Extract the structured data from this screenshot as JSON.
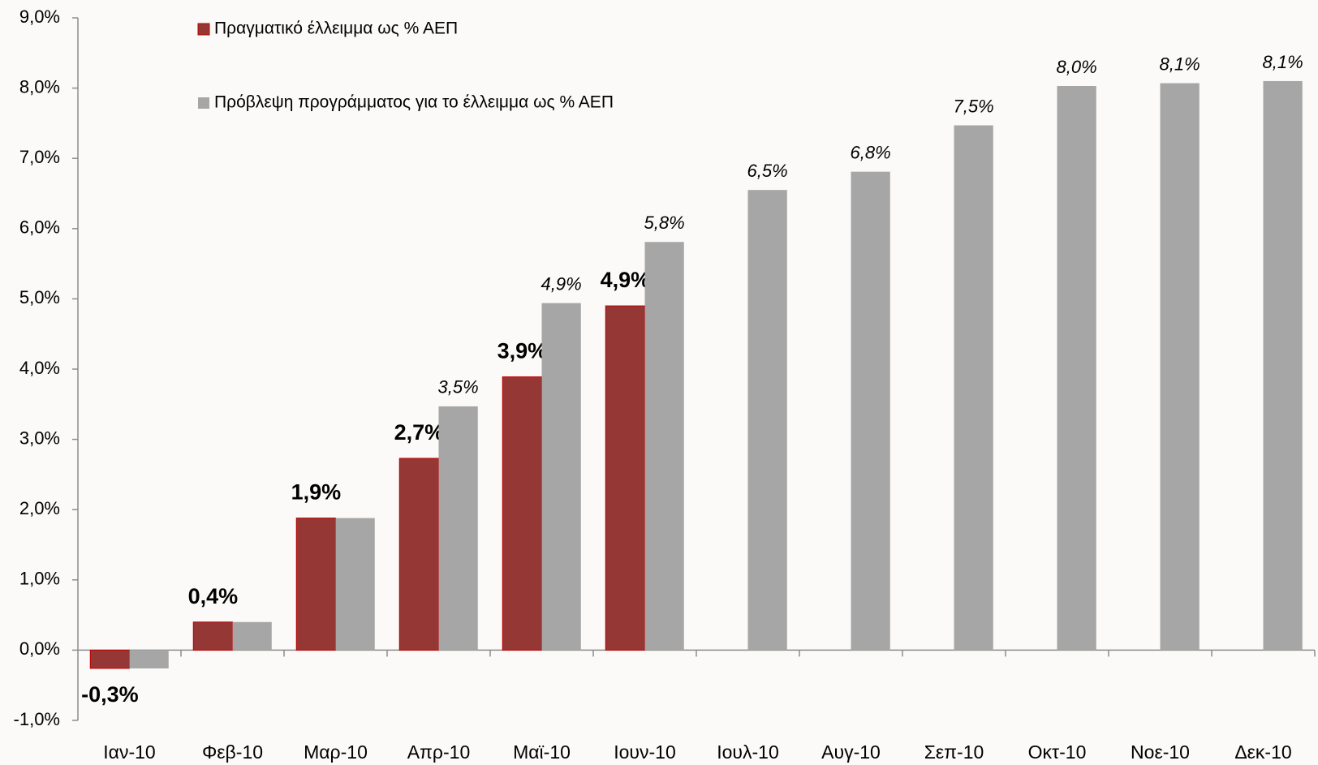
{
  "chart_data": {
    "type": "bar",
    "categories": [
      "Ιαν-10",
      "Φεβ-10",
      "Μαρ-10",
      "Απρ-10",
      "Μαϊ-10",
      "Ιουν-10",
      "Ιουλ-10",
      "Αυγ-10",
      "Σεπ-10",
      "Οκτ-10",
      "Νοε-10",
      "Δεκ-10"
    ],
    "series": [
      {
        "name": "Πραγματικό έλλειμμα ως % ΑΕΠ",
        "color": "#953735",
        "values": [
          -0.26,
          0.4,
          1.88,
          2.73,
          3.89,
          4.9,
          null,
          null,
          null,
          null,
          null,
          null
        ],
        "value_labels": [
          "-0,3%",
          "0,4%",
          "1,9%",
          "2,7%",
          "3,9%",
          "4,9%",
          null,
          null,
          null,
          null,
          null,
          null
        ]
      },
      {
        "name": "Πρόβλεψη προγράμματος για το έλλειμμα ως % ΑΕΠ",
        "color": "#a6a6a6",
        "values": [
          -0.26,
          0.4,
          1.88,
          3.47,
          4.94,
          5.81,
          6.55,
          6.81,
          7.47,
          8.03,
          8.07,
          8.1
        ],
        "value_labels": [
          null,
          null,
          null,
          "3,5%",
          "4,9%",
          "5,8%",
          "6,5%",
          "6,8%",
          "7,5%",
          "8,0%",
          "8,1%",
          "8,1%"
        ]
      }
    ],
    "ylim": [
      -1,
      9
    ],
    "yticks": [
      {
        "value": -1,
        "label": "-1,0%"
      },
      {
        "value": 0,
        "label": "0,0%"
      },
      {
        "value": 1,
        "label": "1,0%"
      },
      {
        "value": 2,
        "label": "2,0%"
      },
      {
        "value": 3,
        "label": "3,0%"
      },
      {
        "value": 4,
        "label": "4,0%"
      },
      {
        "value": 5,
        "label": "5,0%"
      },
      {
        "value": 6,
        "label": "6,0%"
      },
      {
        "value": 7,
        "label": "7,0%"
      },
      {
        "value": 8,
        "label": "8,0%"
      },
      {
        "value": 9,
        "label": "9,0%"
      }
    ],
    "grid": false
  }
}
